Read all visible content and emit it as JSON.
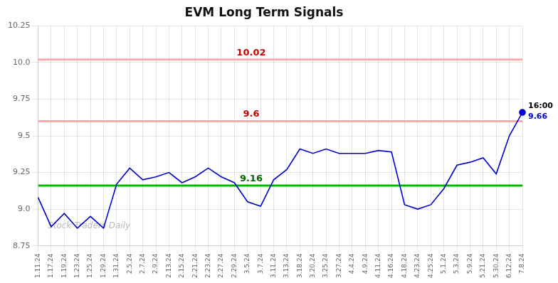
{
  "chart_data": {
    "type": "line",
    "title": "EVM Long Term Signals",
    "categories": [
      "1.11.24",
      "1.17.24",
      "1.19.24",
      "1.23.24",
      "1.25.24",
      "1.29.24",
      "1.31.24",
      "2.5.24",
      "2.7.24",
      "2.9.24",
      "2.13.24",
      "2.15.24",
      "2.21.24",
      "2.23.24",
      "2.27.24",
      "2.29.24",
      "3.5.24",
      "3.7.24",
      "3.11.24",
      "3.13.24",
      "3.18.24",
      "3.20.24",
      "3.25.24",
      "3.27.24",
      "4.4.24",
      "4.9.24",
      "4.11.24",
      "4.16.24",
      "4.18.24",
      "4.23.24",
      "4.25.24",
      "5.1.24",
      "5.3.24",
      "5.9.24",
      "5.21.24",
      "5.30.24",
      "6.12.24",
      "7.8.24"
    ],
    "values": [
      9.08,
      8.88,
      8.97,
      8.87,
      8.95,
      8.87,
      9.17,
      9.28,
      9.2,
      9.22,
      9.25,
      9.18,
      9.22,
      9.28,
      9.22,
      9.18,
      9.05,
      9.02,
      9.2,
      9.27,
      9.41,
      9.38,
      9.41,
      9.38,
      9.38,
      9.38,
      9.4,
      9.39,
      9.03,
      9.0,
      9.03,
      9.14,
      9.3,
      9.32,
      9.35,
      9.24,
      9.5,
      9.66
    ],
    "color": "#0000cc",
    "ylim": [
      8.75,
      10.25
    ],
    "yticks": [
      8.75,
      {
        "value": 9.0,
        "label": "9.0"
      },
      9.25,
      9.5,
      9.75,
      {
        "value": 10.0,
        "label": "10.0"
      },
      10.25
    ],
    "grid": true,
    "reference_lines": [
      {
        "value": 10.02,
        "label": "10.02",
        "color": "#ffaaaa",
        "label_color": "#cc0000"
      },
      {
        "value": 9.6,
        "label": "9.6",
        "color": "#ffaaaa",
        "label_color": "#cc0000"
      },
      {
        "value": 9.16,
        "label": "9.16",
        "color": "#00bb00",
        "label_color": "#006600"
      }
    ],
    "last_point": {
      "label": "16:00",
      "value": 9.66
    },
    "watermark": "Stock Traders Daily"
  }
}
